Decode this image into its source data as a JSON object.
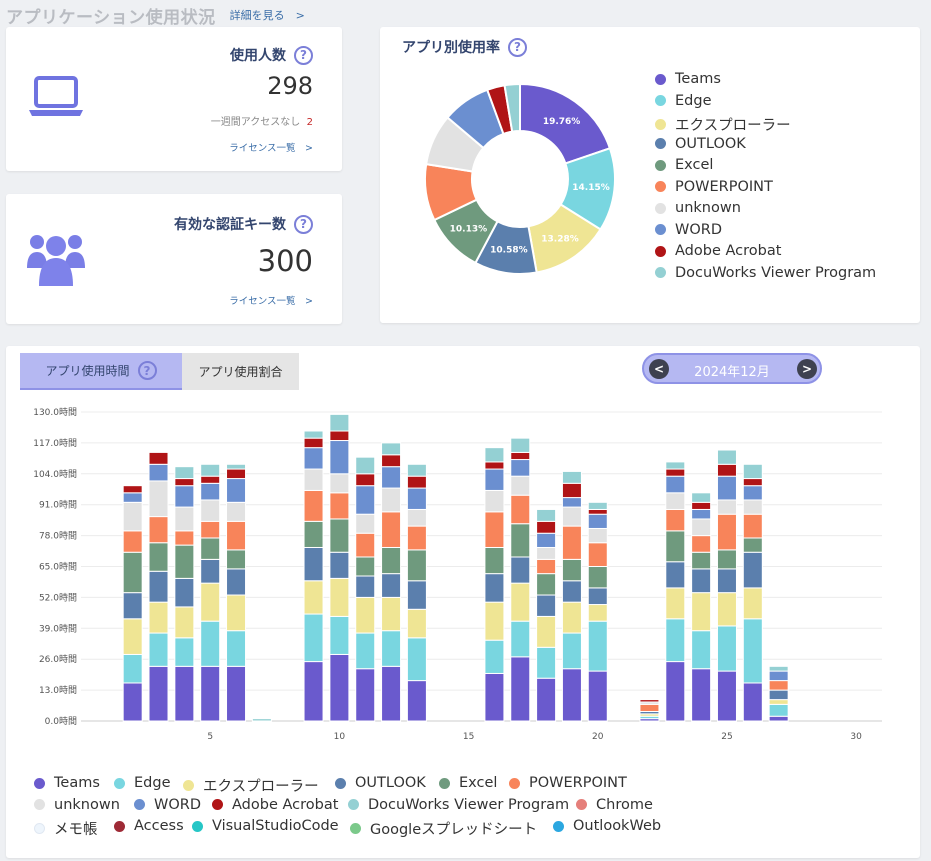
{
  "header": {
    "title": "アプリケーション使用状況",
    "link": "詳細を見る　>"
  },
  "users_card": {
    "title": "使用人数",
    "help": "?",
    "value": "298",
    "note_label": "一週間アクセスなし",
    "note_value": "2",
    "link": "ライセンス一覧　>"
  },
  "keys_card": {
    "title": "有効な認証キー数",
    "help": "?",
    "value": "300",
    "link": "ライセンス一覧　>"
  },
  "donut": {
    "title": "アプリ別使用率",
    "help": "?",
    "legend": [
      {
        "name": "Teams",
        "color": "#6a5acd"
      },
      {
        "name": "Edge",
        "color": "#79d6e0"
      },
      {
        "name": "エクスプローラー",
        "color": "#efe594"
      },
      {
        "name": "OUTLOOK",
        "color": "#5b7fad"
      },
      {
        "name": "Excel",
        "color": "#6f9a7e"
      },
      {
        "name": "POWERPOINT",
        "color": "#f8845a"
      },
      {
        "name": "unknown",
        "color": "#e2e2e2"
      },
      {
        "name": "WORD",
        "color": "#6b8fd0"
      },
      {
        "name": "Adobe Acrobat",
        "color": "#b01416"
      },
      {
        "name": "DocuWorks Viewer Program",
        "color": "#94d0d3"
      }
    ],
    "labels": [
      "19.76%",
      "14.15%",
      "13.28%",
      "10.58%",
      "10.13%"
    ]
  },
  "usage": {
    "tabs": [
      "アプリ使用時間",
      "アプリ使用割合"
    ],
    "tab_help": "?",
    "month": "2024年12月",
    "prev": "<",
    "next": ">",
    "legend": [
      {
        "name": "Teams",
        "color": "#6a5acd"
      },
      {
        "name": "Edge",
        "color": "#79d6e0"
      },
      {
        "name": "エクスプローラー",
        "color": "#efe594"
      },
      {
        "name": "OUTLOOK",
        "color": "#5b7fad"
      },
      {
        "name": "Excel",
        "color": "#6f9a7e"
      },
      {
        "name": "POWERPOINT",
        "color": "#f8845a"
      },
      {
        "name": "unknown",
        "color": "#e2e2e2"
      },
      {
        "name": "WORD",
        "color": "#6b8fd0"
      },
      {
        "name": "Adobe Acrobat",
        "color": "#b01416"
      },
      {
        "name": "DocuWorks Viewer Program",
        "color": "#94d0d3"
      },
      {
        "name": "Chrome",
        "color": "#e57f7a"
      },
      {
        "name": "メモ帳",
        "color": "#eef5fc"
      },
      {
        "name": "Access",
        "color": "#9e2a36"
      },
      {
        "name": "VisualStudioCode",
        "color": "#26c6c6"
      },
      {
        "name": "Googleスプレッドシート",
        "color": "#7bc98a"
      },
      {
        "name": "OutlookWeb",
        "color": "#2ba7e0"
      }
    ]
  },
  "chart_data": [
    {
      "type": "pie",
      "title": "アプリ別使用率",
      "categories": [
        "Teams",
        "Edge",
        "エクスプローラー",
        "OUTLOOK",
        "Excel",
        "POWERPOINT",
        "unknown",
        "WORD",
        "Adobe Acrobat",
        "DocuWorks Viewer Program"
      ],
      "values": [
        19.76,
        14.15,
        13.28,
        10.58,
        10.13,
        9.6,
        8.7,
        8.2,
        3.0,
        2.6
      ]
    },
    {
      "type": "bar",
      "stacked": true,
      "x_ticks": [
        5,
        10,
        15,
        20,
        25,
        30
      ],
      "y_ticks": [
        "0.0時間",
        "13.0時間",
        "26.0時間",
        "39.0時間",
        "52.0時間",
        "65.0時間",
        "78.0時間",
        "91.0時間",
        "104.0時間",
        "117.0時間",
        "130.0時間"
      ],
      "ylim": [
        0,
        130
      ],
      "xlim": [
        0,
        31
      ],
      "series_names": [
        "Teams",
        "Edge",
        "エクスプローラー",
        "OUTLOOK",
        "Excel",
        "POWERPOINT",
        "unknown",
        "WORD",
        "Adobe Acrobat",
        "DocuWorks Viewer Program"
      ],
      "days": [
        {
          "x": 2,
          "values": [
            16,
            12,
            15,
            11,
            17,
            9,
            12,
            4,
            3,
            0
          ]
        },
        {
          "x": 3,
          "values": [
            23,
            14,
            13,
            13,
            12,
            11,
            15,
            7,
            5,
            0
          ]
        },
        {
          "x": 4,
          "values": [
            23,
            12,
            13,
            12,
            14,
            6,
            10,
            9,
            3,
            5
          ]
        },
        {
          "x": 5,
          "values": [
            23,
            19,
            16,
            10,
            9,
            7,
            9,
            7,
            3,
            5
          ]
        },
        {
          "x": 6,
          "values": [
            23,
            15,
            15,
            11,
            8,
            12,
            8,
            10,
            4,
            2
          ]
        },
        {
          "x": 7,
          "values": [
            0,
            0,
            0,
            0,
            0,
            0,
            0,
            0,
            0,
            1
          ]
        },
        {
          "x": 9,
          "values": [
            25,
            20,
            14,
            14,
            11,
            13,
            9,
            9,
            4,
            3
          ]
        },
        {
          "x": 10,
          "values": [
            28,
            16,
            16,
            11,
            14,
            11,
            8,
            14,
            4,
            7
          ]
        },
        {
          "x": 11,
          "values": [
            22,
            15,
            15,
            9,
            8,
            10,
            8,
            12,
            5,
            7
          ]
        },
        {
          "x": 12,
          "values": [
            23,
            15,
            14,
            10,
            11,
            15,
            10,
            9,
            5,
            5
          ]
        },
        {
          "x": 13,
          "values": [
            17,
            18,
            12,
            12,
            13,
            10,
            7,
            9,
            5,
            5
          ]
        },
        {
          "x": 16,
          "values": [
            20,
            14,
            16,
            12,
            11,
            15,
            9,
            9,
            3,
            6
          ]
        },
        {
          "x": 17,
          "values": [
            27,
            15,
            16,
            11,
            14,
            12,
            8,
            7,
            3,
            6
          ]
        },
        {
          "x": 18,
          "values": [
            18,
            13,
            13,
            9,
            9,
            6,
            5,
            6,
            5,
            5
          ]
        },
        {
          "x": 19,
          "values": [
            22,
            15,
            13,
            9,
            9,
            14,
            8,
            4,
            6,
            5
          ]
        },
        {
          "x": 20,
          "values": [
            21,
            21,
            7,
            7,
            9,
            10,
            6,
            6,
            2,
            3
          ]
        },
        {
          "x": 22,
          "values": [
            1,
            1,
            1,
            1,
            0,
            3,
            1,
            0,
            1,
            0
          ]
        },
        {
          "x": 23,
          "values": [
            25,
            18,
            13,
            11,
            13,
            9,
            7,
            7,
            3,
            3
          ]
        },
        {
          "x": 24,
          "values": [
            22,
            16,
            16,
            10,
            7,
            7,
            7,
            4,
            3,
            4
          ]
        },
        {
          "x": 25,
          "values": [
            21,
            19,
            14,
            10,
            8,
            15,
            6,
            10,
            5,
            6
          ]
        },
        {
          "x": 26,
          "values": [
            16,
            27,
            13,
            15,
            6,
            10,
            6,
            6,
            3,
            6
          ]
        },
        {
          "x": 27,
          "values": [
            2,
            5,
            2,
            4,
            0,
            4,
            0,
            4,
            0,
            2
          ]
        }
      ]
    }
  ]
}
